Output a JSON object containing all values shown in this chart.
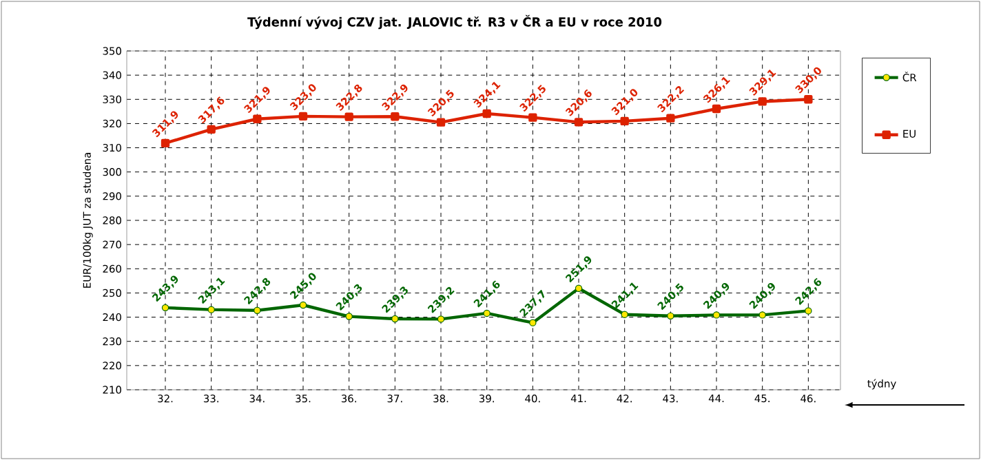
{
  "chart_data": {
    "type": "line",
    "title": "Týdenní vývoj CZV jat. JALOVIC tř. R3  v ČR a EU v roce 2010",
    "ylabel": "EUR/100kg  JUT za studena",
    "xlabel": "týdny",
    "categories": [
      "32.",
      "33.",
      "34.",
      "35.",
      "36.",
      "37.",
      "38.",
      "39.",
      "40.",
      "41.",
      "42.",
      "43.",
      "44.",
      "45.",
      "46."
    ],
    "series": [
      {
        "name": "ČR",
        "color": "#006600",
        "marker": "circle",
        "values": [
          243.9,
          243.1,
          242.8,
          245.0,
          240.3,
          239.3,
          239.2,
          241.6,
          237.7,
          251.9,
          241.1,
          240.5,
          240.9,
          240.9,
          242.6
        ],
        "value_labels": [
          "243,9",
          "243,1",
          "242,8",
          "245,0",
          "240,3",
          "239,3",
          "239,2",
          "241,6",
          "237,7",
          "251,9",
          "241,1",
          "240,5",
          "240,9",
          "240,9",
          "242,6"
        ]
      },
      {
        "name": "EU",
        "color": "#dd2200",
        "marker": "square",
        "values": [
          311.9,
          317.6,
          321.9,
          323.0,
          322.8,
          322.9,
          320.5,
          324.1,
          322.5,
          320.6,
          321.0,
          322.2,
          326.1,
          329.1,
          330.0
        ],
        "value_labels": [
          "311,9",
          "317,6",
          "321,9",
          "323,0",
          "322,8",
          "322,9",
          "320,5",
          "324,1",
          "322,5",
          "320,6",
          "321,0",
          "322,2",
          "326,1",
          "329,1",
          "330,0"
        ]
      }
    ],
    "ylim": [
      210,
      350
    ],
    "yticks": [
      210,
      220,
      230,
      240,
      250,
      260,
      270,
      280,
      290,
      300,
      310,
      320,
      330,
      340,
      350
    ],
    "grid": true,
    "legend": "right",
    "line_style": "solid"
  }
}
